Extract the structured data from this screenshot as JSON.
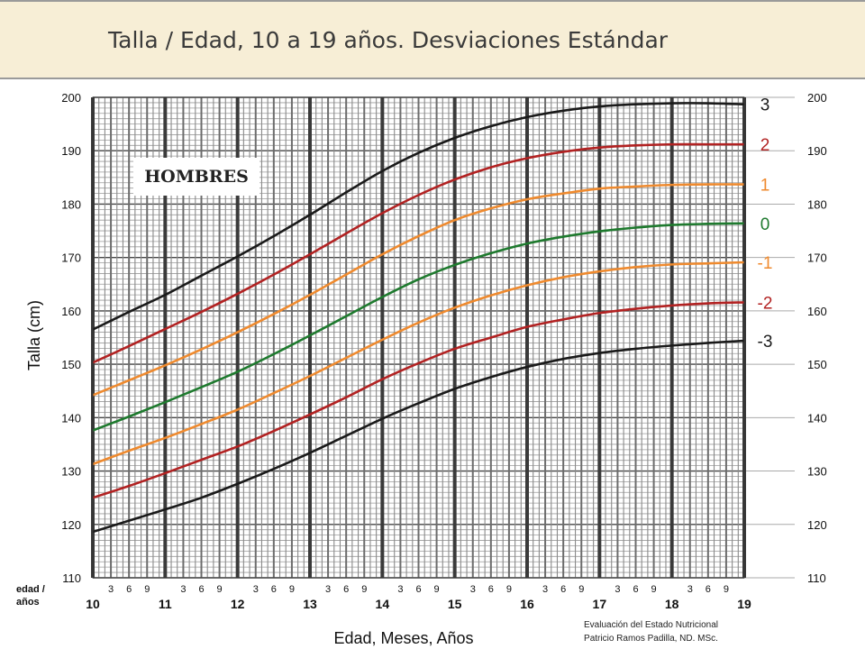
{
  "header": {
    "title": "Talla / Edad, 10 a 19 años. Desviaciones Estándar"
  },
  "footer": {
    "line1": "Evaluación del Estado Nutricional",
    "line2": "Patricio Ramos Padilla, ND. MSc."
  },
  "chart_data": {
    "type": "line",
    "title": "Talla / Edad, 10 a 19 años. Desviaciones Estándar",
    "inset_label": "HOMBRES",
    "xlabel": "Edad, Meses, Años",
    "ylabel": "Talla (cm)",
    "x_axis_corner_label": [
      "edad /",
      "años"
    ],
    "xlim": [
      10,
      19
    ],
    "ylim": [
      110,
      200
    ],
    "x_ticks": [
      "10",
      "11",
      "12",
      "13",
      "14",
      "15",
      "16",
      "17",
      "18",
      "19"
    ],
    "x_minor_tick_labels": [
      "3",
      "6",
      "9"
    ],
    "y_ticks": [
      "110",
      "120",
      "130",
      "140",
      "150",
      "160",
      "170",
      "180",
      "190",
      "200"
    ],
    "grid": true,
    "legend": "right",
    "x": [
      10,
      10.5,
      11,
      11.5,
      12,
      12.5,
      13,
      13.5,
      14,
      14.5,
      15,
      15.5,
      16,
      16.5,
      17,
      17.5,
      18,
      18.5,
      19
    ],
    "series": [
      {
        "name": "3",
        "color": "#1a1a1a",
        "values": [
          156.5,
          159.8,
          163.0,
          166.6,
          170.2,
          174.0,
          178.0,
          182.2,
          186.2,
          189.6,
          192.4,
          194.6,
          196.3,
          197.5,
          198.3,
          198.7,
          198.9,
          198.9,
          198.7
        ]
      },
      {
        "name": "2",
        "color": "#b22222",
        "values": [
          150.3,
          153.4,
          156.6,
          159.8,
          163.2,
          166.8,
          170.6,
          174.5,
          178.3,
          181.7,
          184.6,
          186.9,
          188.6,
          189.8,
          190.6,
          191.0,
          191.2,
          191.2,
          191.2
        ]
      },
      {
        "name": "1",
        "color": "#ef8a2e",
        "values": [
          144.2,
          147.0,
          149.8,
          152.8,
          156.0,
          159.4,
          163.0,
          166.8,
          170.6,
          174.0,
          177.0,
          179.2,
          180.9,
          182.0,
          182.9,
          183.3,
          183.6,
          183.7,
          183.7
        ]
      },
      {
        "name": "0",
        "color": "#1e7a2e",
        "values": [
          137.6,
          140.2,
          142.9,
          145.7,
          148.6,
          151.9,
          155.4,
          159.0,
          162.6,
          165.9,
          168.6,
          170.8,
          172.6,
          173.9,
          174.9,
          175.6,
          176.1,
          176.3,
          176.4
        ]
      },
      {
        "name": "-1",
        "color": "#ef8a2e",
        "values": [
          131.3,
          133.8,
          136.2,
          138.8,
          141.5,
          144.6,
          147.8,
          151.2,
          154.6,
          157.8,
          160.6,
          162.9,
          164.8,
          166.3,
          167.4,
          168.2,
          168.7,
          168.9,
          169.1
        ]
      },
      {
        "name": "-2",
        "color": "#b22222",
        "values": [
          125.0,
          127.2,
          129.6,
          132.1,
          134.6,
          137.5,
          140.6,
          143.8,
          147.2,
          150.2,
          152.9,
          155.0,
          157.0,
          158.4,
          159.6,
          160.4,
          161.0,
          161.4,
          161.6
        ]
      },
      {
        "name": "-3",
        "color": "#1a1a1a",
        "values": [
          118.6,
          120.7,
          122.8,
          125.0,
          127.6,
          130.4,
          133.4,
          136.6,
          139.8,
          142.7,
          145.4,
          147.6,
          149.5,
          151.0,
          152.1,
          152.9,
          153.5,
          154.0,
          154.4
        ]
      }
    ]
  }
}
